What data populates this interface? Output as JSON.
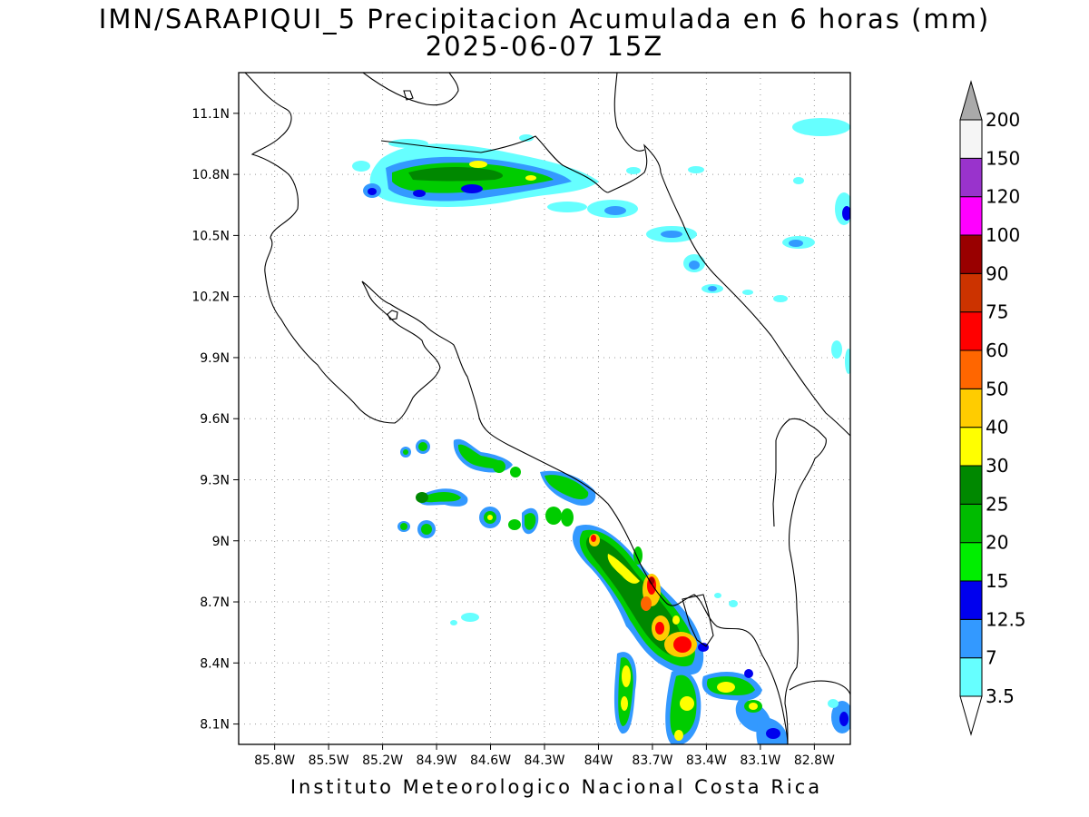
{
  "title": {
    "line1": "IMN/SARAPIQUI_5 Precipitacion Acumulada en 6 horas (mm)",
    "line2": "2025-06-07 15Z"
  },
  "footer": "Instituto Meteorologico Nacional Costa Rica",
  "map": {
    "lon_range": [
      -86.0,
      -82.6
    ],
    "lat_range": [
      8.0,
      11.3
    ],
    "x_ticks": [
      "85.8W",
      "85.5W",
      "85.2W",
      "84.9W",
      "84.6W",
      "84.3W",
      "84W",
      "83.7W",
      "83.4W",
      "83.1W",
      "82.8W"
    ],
    "x_tick_values": [
      -85.8,
      -85.5,
      -85.2,
      -84.9,
      -84.6,
      -84.3,
      -84.0,
      -83.7,
      -83.4,
      -83.1,
      -82.8
    ],
    "y_ticks": [
      "11.1N",
      "10.8N",
      "10.5N",
      "10.2N",
      "9.9N",
      "9.6N",
      "9.3N",
      "9N",
      "8.7N",
      "8.4N",
      "8.1N"
    ],
    "y_tick_values": [
      11.1,
      10.8,
      10.5,
      10.2,
      9.9,
      9.6,
      9.3,
      9.0,
      8.7,
      8.4,
      8.1
    ],
    "grid": "dotted"
  },
  "colorbar": {
    "levels": [
      "3.5",
      "7",
      "12.5",
      "15",
      "20",
      "25",
      "30",
      "40",
      "50",
      "60",
      "75",
      "90",
      "100",
      "120",
      "150",
      "200"
    ],
    "colors": [
      "#ffffff",
      "#66ffff",
      "#3399ff",
      "#0000ee",
      "#00ee00",
      "#00bb00",
      "#008800",
      "#ffff00",
      "#ffcc00",
      "#ff6600",
      "#ff0000",
      "#cc3300",
      "#990000",
      "#ff00ff",
      "#9933cc",
      "#f5f5f5",
      "#aaaaaa"
    ]
  }
}
